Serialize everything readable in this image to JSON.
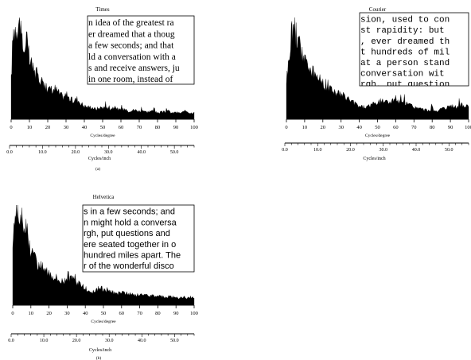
{
  "chart_data": [
    {
      "id": "times",
      "type": "area",
      "title": "Times",
      "xlabel": "Cycles/degree",
      "xlim": [
        0,
        100
      ],
      "xticks": [
        "0",
        "10",
        "20",
        "30",
        "40",
        "50",
        "60",
        "70",
        "80",
        "90",
        "100"
      ],
      "xlabel2": "Cycles/inch",
      "xlim2": [
        0,
        56
      ],
      "xticks2": [
        "0.0",
        "10.0",
        "20.0",
        "30.0",
        "40.0",
        "50.0"
      ],
      "caption": "(a)",
      "font": "serif",
      "sample_lines": [
        "n idea of the greatest ra",
        "er dreamed that a thoug",
        "a few seconds; and that",
        "ld a conversation with a",
        "s and receive answers, ju",
        "in one room, instead of"
      ],
      "x": [
        0,
        1,
        2,
        3,
        4,
        5,
        6,
        7,
        8,
        9,
        10,
        12,
        14,
        16,
        18,
        20,
        22,
        24,
        26,
        28,
        30,
        32,
        34,
        36,
        38,
        40,
        42,
        44,
        46,
        48,
        50,
        52,
        54,
        56,
        58,
        60,
        62,
        64,
        66,
        68,
        70,
        72,
        74,
        76,
        78,
        80,
        82,
        84,
        86,
        88,
        90,
        92,
        94,
        96,
        98,
        100
      ],
      "y": [
        0.38,
        0.82,
        0.9,
        0.92,
        0.95,
        0.97,
        0.82,
        0.6,
        0.85,
        0.7,
        0.58,
        0.5,
        0.44,
        0.4,
        0.34,
        0.3,
        0.28,
        0.3,
        0.26,
        0.22,
        0.24,
        0.2,
        0.18,
        0.2,
        0.16,
        0.13,
        0.12,
        0.12,
        0.1,
        0.11,
        0.12,
        0.11,
        0.1,
        0.12,
        0.1,
        0.09,
        0.1,
        0.08,
        0.09,
        0.09,
        0.08,
        0.09,
        0.07,
        0.08,
        0.08,
        0.06,
        0.07,
        0.07,
        0.08,
        0.06,
        0.07,
        0.06,
        0.07,
        0.08,
        0.06,
        0.07
      ]
    },
    {
      "id": "courier",
      "type": "area",
      "title": "Courier",
      "xlabel": "Cycles/degree",
      "xlim": [
        0,
        100
      ],
      "xticks": [
        "0",
        "10",
        "20",
        "30",
        "40",
        "50",
        "60",
        "70",
        "80",
        "90",
        "100"
      ],
      "xlabel2": "Cycles/inch",
      "xlim2": [
        0,
        56
      ],
      "xticks2": [
        "0.0",
        "10.0",
        "20.0",
        "30.0",
        "40.0",
        "50.0"
      ],
      "caption": "",
      "font": "mono",
      "sample_lines": [
        "sion, used to con",
        "st rapidity: but",
        ", ever dreamed th",
        "t hundreds of mil",
        "at a person stand",
        " conversation wit",
        "rgh, put question"
      ],
      "x": [
        0,
        1,
        2,
        3,
        4,
        5,
        6,
        7,
        8,
        9,
        10,
        12,
        14,
        16,
        18,
        20,
        22,
        24,
        26,
        28,
        30,
        32,
        34,
        36,
        38,
        40,
        42,
        44,
        46,
        48,
        50,
        52,
        54,
        56,
        58,
        60,
        62,
        64,
        66,
        68,
        70,
        72,
        74,
        76,
        78,
        80,
        82,
        84,
        86,
        88,
        90,
        92,
        94,
        96,
        98,
        100
      ],
      "y": [
        0.4,
        0.52,
        0.7,
        0.9,
        0.88,
        0.86,
        0.75,
        0.85,
        0.7,
        0.62,
        0.58,
        0.52,
        0.48,
        0.44,
        0.4,
        0.36,
        0.32,
        0.3,
        0.28,
        0.26,
        0.24,
        0.22,
        0.2,
        0.17,
        0.15,
        0.13,
        0.12,
        0.12,
        0.14,
        0.15,
        0.16,
        0.17,
        0.18,
        0.17,
        0.18,
        0.19,
        0.17,
        0.16,
        0.15,
        0.14,
        0.12,
        0.11,
        0.1,
        0.09,
        0.09,
        0.08,
        0.08,
        0.09,
        0.1,
        0.11,
        0.12,
        0.13,
        0.12,
        0.14,
        0.13,
        0.12
      ]
    },
    {
      "id": "helvetica",
      "type": "area",
      "title": "Helvetica",
      "xlabel": "Cycles/degree",
      "xlim": [
        0,
        100
      ],
      "xticks": [
        "0",
        "10",
        "20",
        "30",
        "40",
        "50",
        "60",
        "70",
        "80",
        "90",
        "100"
      ],
      "xlabel2": "Cycles/inch",
      "xlim2": [
        0,
        56
      ],
      "xticks2": [
        "0.0",
        "10.0",
        "20.0",
        "30.0",
        "40.0",
        "50.0"
      ],
      "caption": "(b)",
      "font": "sans",
      "sample_lines": [
        "s in a few seconds; and",
        "n might hold a conversa",
        "rgh, put questions and",
        "ere seated together in o",
        "hundred miles apart. The",
        "r of the wonderful disco"
      ],
      "x": [
        0,
        1,
        2,
        3,
        4,
        5,
        6,
        7,
        8,
        9,
        10,
        12,
        14,
        16,
        18,
        20,
        22,
        24,
        26,
        28,
        30,
        32,
        34,
        36,
        38,
        40,
        42,
        44,
        46,
        48,
        50,
        52,
        54,
        56,
        58,
        60,
        62,
        64,
        66,
        68,
        70,
        72,
        74,
        76,
        78,
        80,
        82,
        84,
        86,
        88,
        90,
        92,
        94,
        96,
        98,
        100
      ],
      "y": [
        0.6,
        0.9,
        0.95,
        0.94,
        0.9,
        0.85,
        0.66,
        0.75,
        0.82,
        0.6,
        0.55,
        0.48,
        0.42,
        0.38,
        0.36,
        0.34,
        0.3,
        0.28,
        0.25,
        0.24,
        0.28,
        0.26,
        0.25,
        0.22,
        0.2,
        0.16,
        0.14,
        0.13,
        0.15,
        0.17,
        0.16,
        0.15,
        0.14,
        0.12,
        0.12,
        0.13,
        0.12,
        0.11,
        0.11,
        0.1,
        0.1,
        0.11,
        0.1,
        0.09,
        0.1,
        0.1,
        0.09,
        0.08,
        0.09,
        0.08,
        0.08,
        0.07,
        0.08,
        0.07,
        0.08,
        0.07
      ]
    }
  ]
}
